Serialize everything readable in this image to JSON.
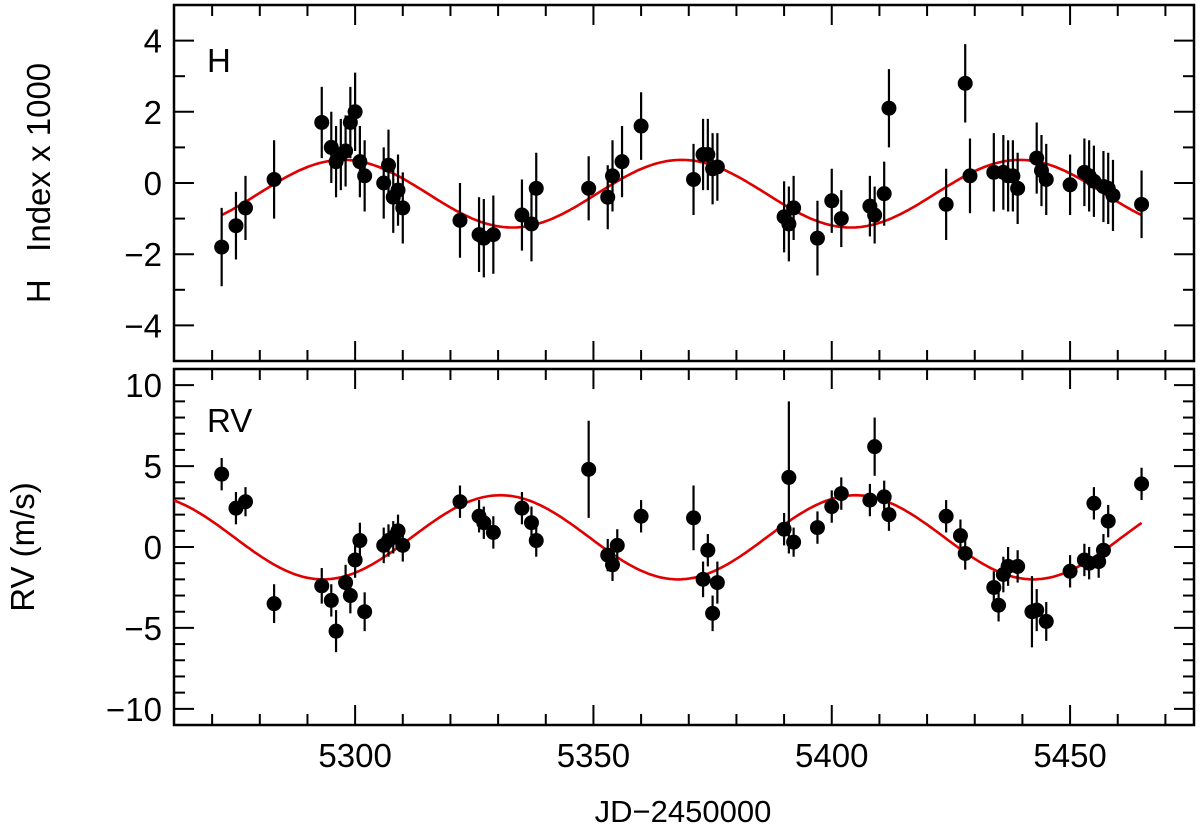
{
  "chart_data": [
    {
      "type": "scatter",
      "panel_label": "H",
      "ylabel": "H   Index x 1000",
      "xlim": [
        5262,
        5476
      ],
      "ylim": [
        -5,
        5
      ],
      "y_ticks": [
        -4,
        -2,
        0,
        2,
        4
      ],
      "y_tick_labels": [
        "−4",
        "−2",
        "0",
        "2",
        "4"
      ],
      "model": {
        "amplitude": 0.95,
        "offset": -0.3,
        "period": 71,
        "peak_x": 5297.5
      },
      "model_color": "#e00000",
      "point_color": "#000000",
      "points": [
        {
          "x": 5272,
          "y": -1.8,
          "err": 1.1
        },
        {
          "x": 5275,
          "y": -1.2,
          "err": 0.95
        },
        {
          "x": 5277,
          "y": -0.7,
          "err": 0.9
        },
        {
          "x": 5283,
          "y": 0.1,
          "err": 1.1
        },
        {
          "x": 5293,
          "y": 1.7,
          "err": 1.0
        },
        {
          "x": 5295,
          "y": 1.0,
          "err": 1.0
        },
        {
          "x": 5296,
          "y": 0.6,
          "err": 1.0
        },
        {
          "x": 5297,
          "y": 0.8,
          "err": 1.0
        },
        {
          "x": 5298,
          "y": 0.9,
          "err": 1.0
        },
        {
          "x": 5299,
          "y": 1.7,
          "err": 1.0
        },
        {
          "x": 5300,
          "y": 2.0,
          "err": 1.1
        },
        {
          "x": 5301,
          "y": 0.6,
          "err": 1.0
        },
        {
          "x": 5302,
          "y": 0.2,
          "err": 1.0
        },
        {
          "x": 5306,
          "y": 0.0,
          "err": 1.0
        },
        {
          "x": 5307,
          "y": 0.5,
          "err": 1.0
        },
        {
          "x": 5308,
          "y": -0.4,
          "err": 1.0
        },
        {
          "x": 5309,
          "y": -0.2,
          "err": 1.0
        },
        {
          "x": 5310,
          "y": -0.7,
          "err": 1.0
        },
        {
          "x": 5322,
          "y": -1.05,
          "err": 1.05
        },
        {
          "x": 5326,
          "y": -1.45,
          "err": 1.05
        },
        {
          "x": 5327,
          "y": -1.55,
          "err": 1.1
        },
        {
          "x": 5329,
          "y": -1.45,
          "err": 1.1
        },
        {
          "x": 5335,
          "y": -0.9,
          "err": 1.0
        },
        {
          "x": 5337,
          "y": -1.15,
          "err": 1.05
        },
        {
          "x": 5338,
          "y": -0.15,
          "err": 1.0
        },
        {
          "x": 5349,
          "y": -0.15,
          "err": 0.9
        },
        {
          "x": 5353,
          "y": -0.4,
          "err": 0.9
        },
        {
          "x": 5354,
          "y": 0.2,
          "err": 1.0
        },
        {
          "x": 5356,
          "y": 0.6,
          "err": 1.0
        },
        {
          "x": 5360,
          "y": 1.6,
          "err": 0.95
        },
        {
          "x": 5371,
          "y": 0.1,
          "err": 1.0
        },
        {
          "x": 5373,
          "y": 0.8,
          "err": 1.0
        },
        {
          "x": 5374,
          "y": 0.8,
          "err": 1.0
        },
        {
          "x": 5375,
          "y": 0.4,
          "err": 1.0
        },
        {
          "x": 5376,
          "y": 0.45,
          "err": 0.95
        },
        {
          "x": 5390,
          "y": -0.95,
          "err": 1.0
        },
        {
          "x": 5391,
          "y": -1.15,
          "err": 1.05
        },
        {
          "x": 5392,
          "y": -0.7,
          "err": 0.9
        },
        {
          "x": 5397,
          "y": -1.55,
          "err": 1.05
        },
        {
          "x": 5400,
          "y": -0.5,
          "err": 0.9
        },
        {
          "x": 5402,
          "y": -1.0,
          "err": 0.8
        },
        {
          "x": 5408,
          "y": -0.65,
          "err": 0.85
        },
        {
          "x": 5409,
          "y": -0.9,
          "err": 0.8
        },
        {
          "x": 5411,
          "y": -0.3,
          "err": 0.9
        },
        {
          "x": 5412,
          "y": 2.1,
          "err": 1.1
        },
        {
          "x": 5424,
          "y": -0.6,
          "err": 1.0
        },
        {
          "x": 5428,
          "y": 2.8,
          "err": 1.1
        },
        {
          "x": 5429,
          "y": 0.2,
          "err": 1.05
        },
        {
          "x": 5434,
          "y": 0.3,
          "err": 1.1
        },
        {
          "x": 5436,
          "y": 0.3,
          "err": 1.05
        },
        {
          "x": 5437,
          "y": 0.2,
          "err": 1.0
        },
        {
          "x": 5438,
          "y": 0.2,
          "err": 1.0
        },
        {
          "x": 5439,
          "y": -0.15,
          "err": 1.0
        },
        {
          "x": 5443,
          "y": 0.7,
          "err": 1.0
        },
        {
          "x": 5444,
          "y": 0.35,
          "err": 1.0
        },
        {
          "x": 5445,
          "y": 0.1,
          "err": 1.0
        },
        {
          "x": 5450,
          "y": -0.05,
          "err": 0.85
        },
        {
          "x": 5453,
          "y": 0.3,
          "err": 0.95
        },
        {
          "x": 5454,
          "y": 0.2,
          "err": 1.0
        },
        {
          "x": 5455,
          "y": 0.05,
          "err": 1.0
        },
        {
          "x": 5457,
          "y": -0.1,
          "err": 1.0
        },
        {
          "x": 5458,
          "y": -0.15,
          "err": 1.0
        },
        {
          "x": 5459,
          "y": -0.35,
          "err": 1.0
        },
        {
          "x": 5465,
          "y": -0.6,
          "err": 0.95
        }
      ]
    },
    {
      "type": "scatter",
      "panel_label": "RV",
      "ylabel": "RV (m/s)",
      "xlabel": "JD−2450000",
      "xlim": [
        5262,
        5476
      ],
      "ylim": [
        -11,
        11
      ],
      "y_ticks": [
        -10,
        -5,
        0,
        5,
        10
      ],
      "y_tick_labels": [
        "−10",
        "−5",
        "0",
        "5",
        "10"
      ],
      "x_ticks": [
        5300,
        5350,
        5400,
        5450
      ],
      "x_tick_labels": [
        "5300",
        "5350",
        "5400",
        "5450"
      ],
      "model": {
        "amplitude": 2.6,
        "offset": 0.6,
        "period": 74.5,
        "peak_x": 5330.5
      },
      "model_color": "#e00000",
      "point_color": "#000000",
      "points": [
        {
          "x": 5272,
          "y": 4.5,
          "err": 1.0
        },
        {
          "x": 5275,
          "y": 2.4,
          "err": 1.0
        },
        {
          "x": 5277,
          "y": 2.8,
          "err": 0.9
        },
        {
          "x": 5283,
          "y": -3.5,
          "err": 1.2
        },
        {
          "x": 5293,
          "y": -2.4,
          "err": 1.1
        },
        {
          "x": 5295,
          "y": -3.3,
          "err": 1.0
        },
        {
          "x": 5296,
          "y": -5.2,
          "err": 1.3
        },
        {
          "x": 5298,
          "y": -2.2,
          "err": 1.1
        },
        {
          "x": 5299,
          "y": -3.0,
          "err": 1.1
        },
        {
          "x": 5300,
          "y": -0.8,
          "err": 1.1
        },
        {
          "x": 5301,
          "y": 0.4,
          "err": 1.1
        },
        {
          "x": 5302,
          "y": -4.0,
          "err": 1.2
        },
        {
          "x": 5306,
          "y": 0.1,
          "err": 1.1
        },
        {
          "x": 5307,
          "y": 0.4,
          "err": 1.0
        },
        {
          "x": 5308,
          "y": 0.6,
          "err": 1.0
        },
        {
          "x": 5309,
          "y": 1.0,
          "err": 1.0
        },
        {
          "x": 5310,
          "y": 0.1,
          "err": 1.0
        },
        {
          "x": 5322,
          "y": 2.8,
          "err": 1.0
        },
        {
          "x": 5326,
          "y": 1.9,
          "err": 1.0
        },
        {
          "x": 5327,
          "y": 1.5,
          "err": 1.0
        },
        {
          "x": 5329,
          "y": 0.9,
          "err": 1.0
        },
        {
          "x": 5335,
          "y": 2.4,
          "err": 1.0
        },
        {
          "x": 5337,
          "y": 1.5,
          "err": 1.0
        },
        {
          "x": 5338,
          "y": 0.4,
          "err": 1.0
        },
        {
          "x": 5349,
          "y": 4.8,
          "err": 3.0
        },
        {
          "x": 5353,
          "y": -0.5,
          "err": 1.0
        },
        {
          "x": 5354,
          "y": -1.1,
          "err": 1.0
        },
        {
          "x": 5355,
          "y": 0.1,
          "err": 1.0
        },
        {
          "x": 5360,
          "y": 1.9,
          "err": 1.0
        },
        {
          "x": 5371,
          "y": 1.8,
          "err": 2.0
        },
        {
          "x": 5373,
          "y": -2.0,
          "err": 1.1
        },
        {
          "x": 5374,
          "y": -0.2,
          "err": 1.0
        },
        {
          "x": 5375,
          "y": -4.1,
          "err": 1.1
        },
        {
          "x": 5376,
          "y": -2.2,
          "err": 1.3
        },
        {
          "x": 5390,
          "y": 1.1,
          "err": 1.0
        },
        {
          "x": 5391,
          "y": 4.3,
          "err": 4.7
        },
        {
          "x": 5392,
          "y": 0.3,
          "err": 0.9
        },
        {
          "x": 5397,
          "y": 1.2,
          "err": 1.0
        },
        {
          "x": 5400,
          "y": 2.5,
          "err": 1.0
        },
        {
          "x": 5402,
          "y": 3.3,
          "err": 1.0
        },
        {
          "x": 5408,
          "y": 2.9,
          "err": 1.0
        },
        {
          "x": 5409,
          "y": 6.2,
          "err": 1.8
        },
        {
          "x": 5411,
          "y": 3.1,
          "err": 1.0
        },
        {
          "x": 5412,
          "y": 2.0,
          "err": 1.0
        },
        {
          "x": 5424,
          "y": 1.9,
          "err": 1.0
        },
        {
          "x": 5427,
          "y": 0.7,
          "err": 1.0
        },
        {
          "x": 5428,
          "y": -0.4,
          "err": 1.0
        },
        {
          "x": 5434,
          "y": -2.5,
          "err": 1.0
        },
        {
          "x": 5435,
          "y": -3.6,
          "err": 1.0
        },
        {
          "x": 5436,
          "y": -1.7,
          "err": 1.1
        },
        {
          "x": 5437,
          "y": -1.2,
          "err": 1.2
        },
        {
          "x": 5439,
          "y": -1.2,
          "err": 1.0
        },
        {
          "x": 5442,
          "y": -4.0,
          "err": 2.2
        },
        {
          "x": 5443,
          "y": -3.9,
          "err": 1.3
        },
        {
          "x": 5445,
          "y": -4.6,
          "err": 1.2
        },
        {
          "x": 5450,
          "y": -1.5,
          "err": 1.0
        },
        {
          "x": 5453,
          "y": -0.8,
          "err": 1.0
        },
        {
          "x": 5454,
          "y": -1.0,
          "err": 1.0
        },
        {
          "x": 5455,
          "y": 2.7,
          "err": 1.0
        },
        {
          "x": 5456,
          "y": -0.9,
          "err": 1.0
        },
        {
          "x": 5457,
          "y": -0.2,
          "err": 1.0
        },
        {
          "x": 5458,
          "y": 1.6,
          "err": 1.0
        },
        {
          "x": 5465,
          "y": 3.9,
          "err": 1.0
        }
      ]
    }
  ]
}
